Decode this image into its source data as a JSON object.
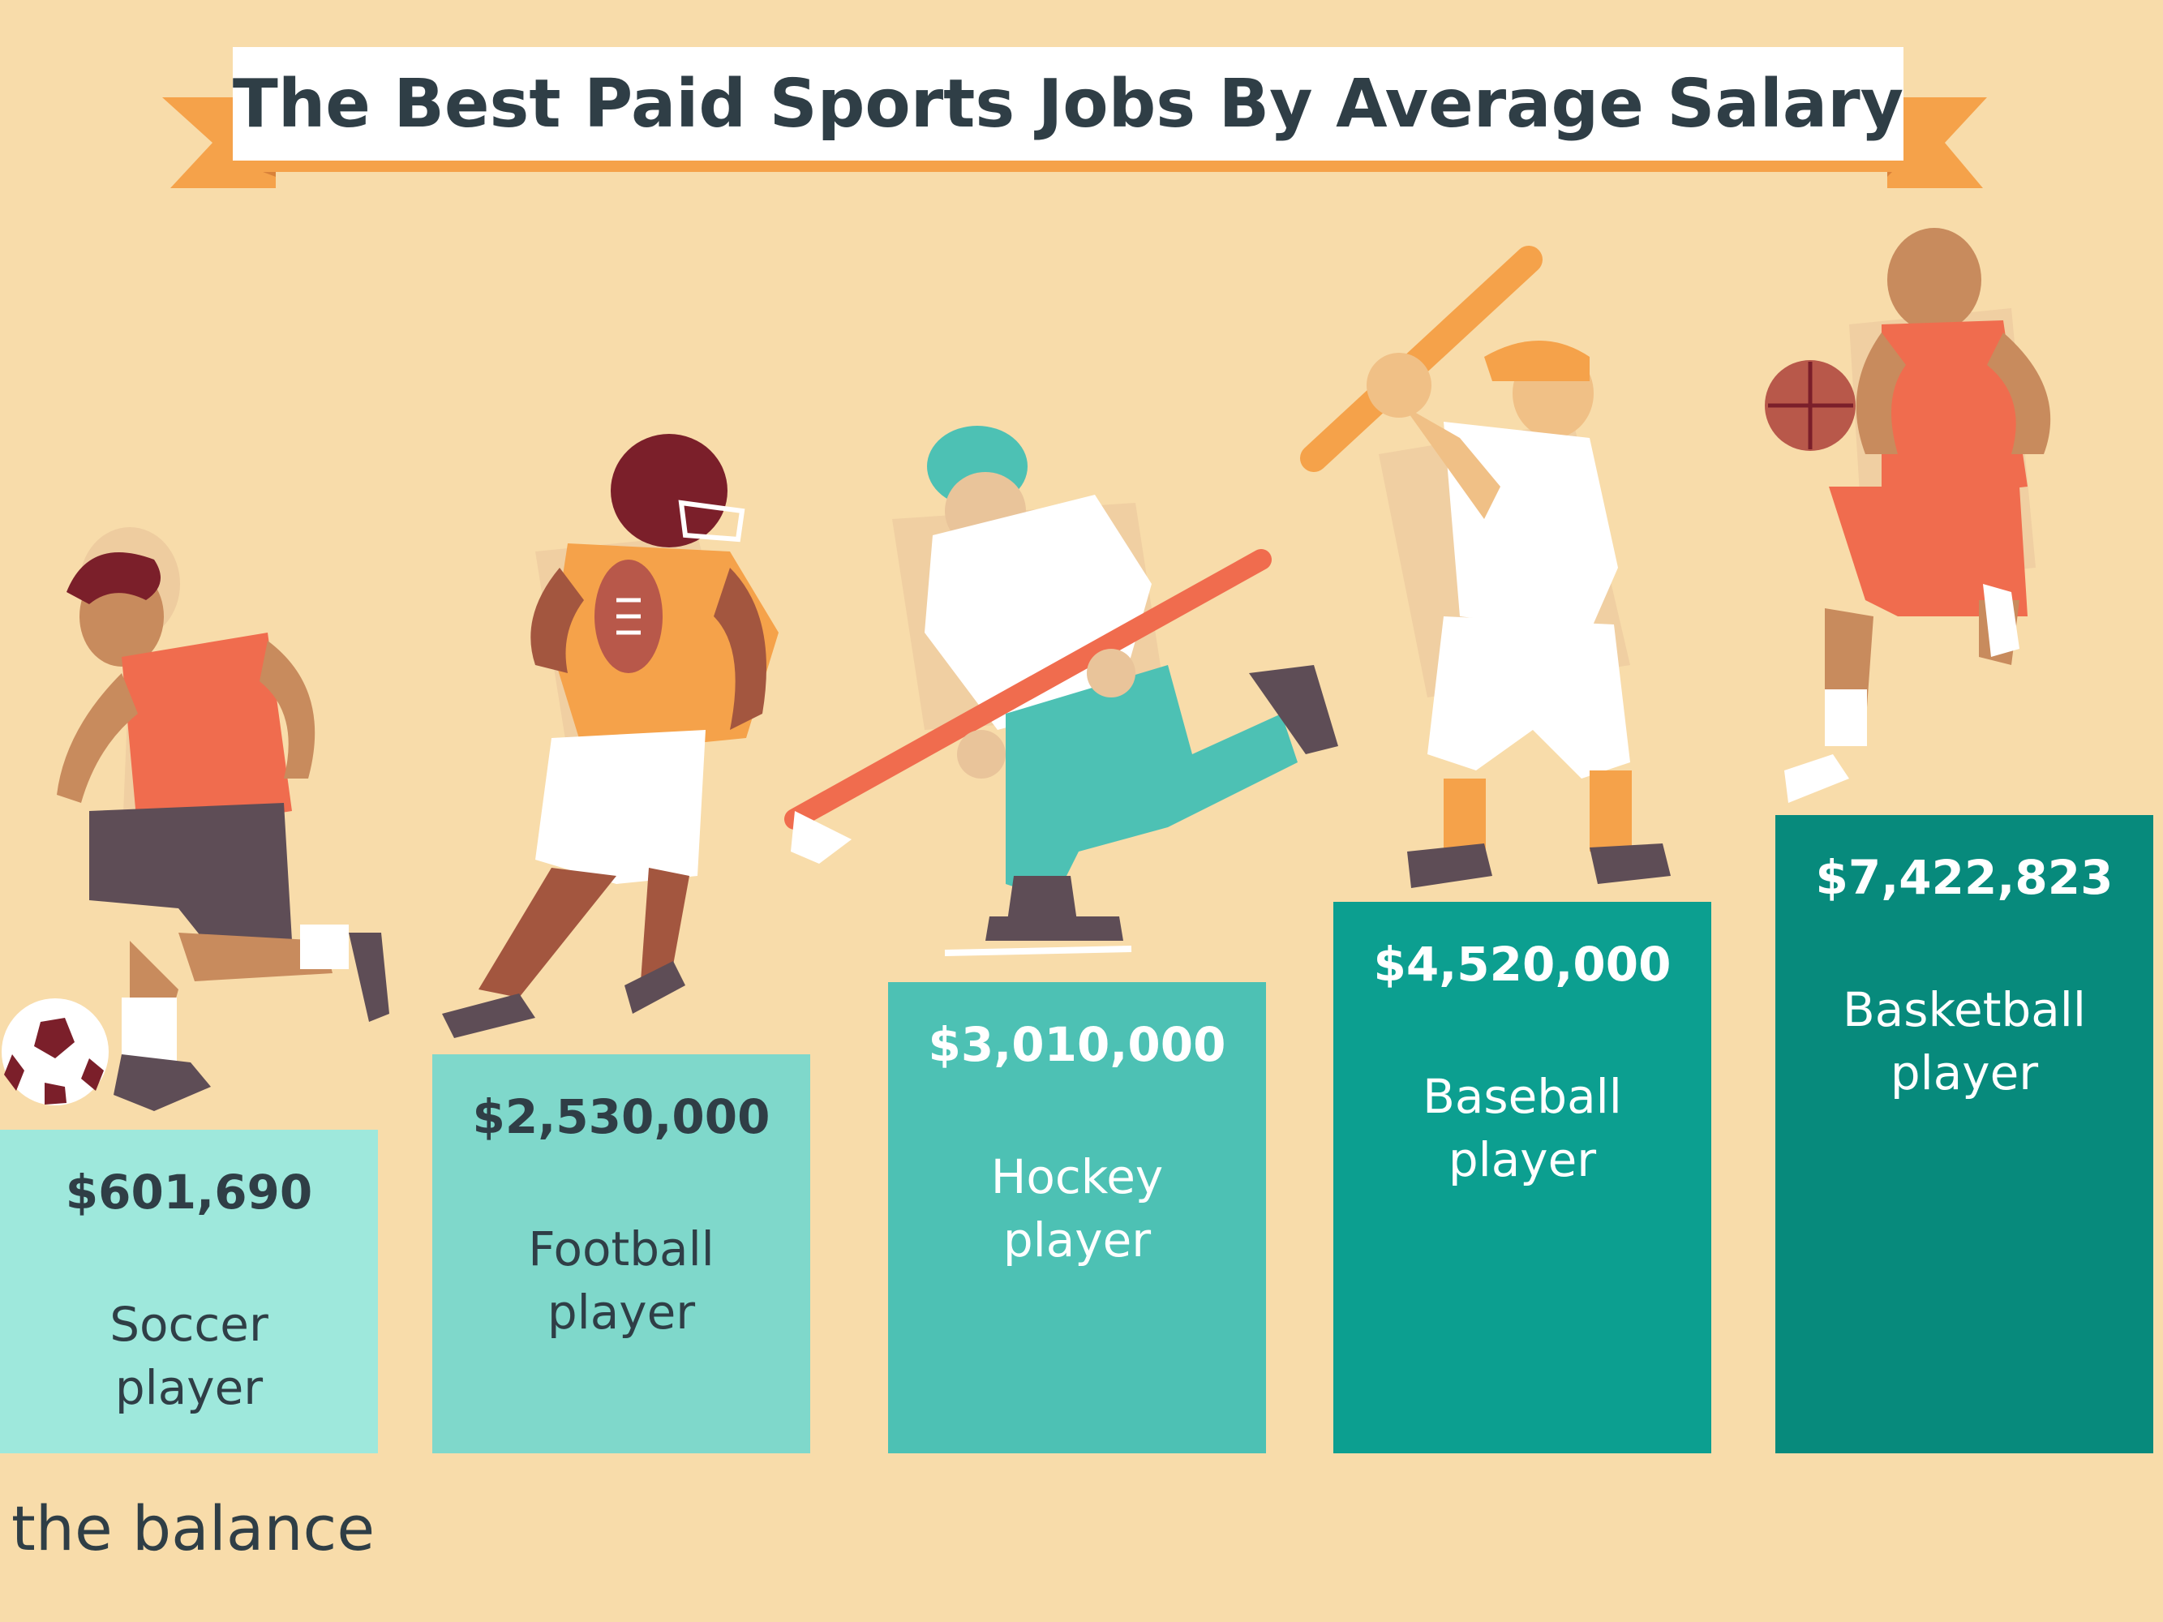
{
  "title": "The Best Paid Sports Jobs By Average Salary",
  "brand": "the balance",
  "chart_data": {
    "type": "bar",
    "title": "The Best Paid Sports Jobs By Average Salary",
    "categories": [
      [
        "Soccer",
        "player"
      ],
      [
        "Football",
        "player"
      ],
      [
        "Hockey",
        "player"
      ],
      [
        "Baseball",
        "player"
      ],
      [
        "Basketball",
        "player"
      ]
    ],
    "values": [
      601690,
      2530000,
      3010000,
      4520000,
      7422823
    ],
    "value_labels": [
      "$601,690",
      "$2,530,000",
      "$3,010,000",
      "$4,520,000",
      "$7,422,823"
    ],
    "colors": [
      "#9ee8dc",
      "#7fd8cb",
      "#4dc1b4",
      "#0c9f90",
      "#078a7c"
    ],
    "text_colors": [
      "#2f3e46",
      "#2f3e46",
      "#ffffff",
      "#ffffff",
      "#ffffff"
    ],
    "player_icons": [
      "soccer-player-icon",
      "football-player-icon",
      "hockey-player-icon",
      "baseball-player-icon",
      "basketball-player-icon"
    ]
  }
}
